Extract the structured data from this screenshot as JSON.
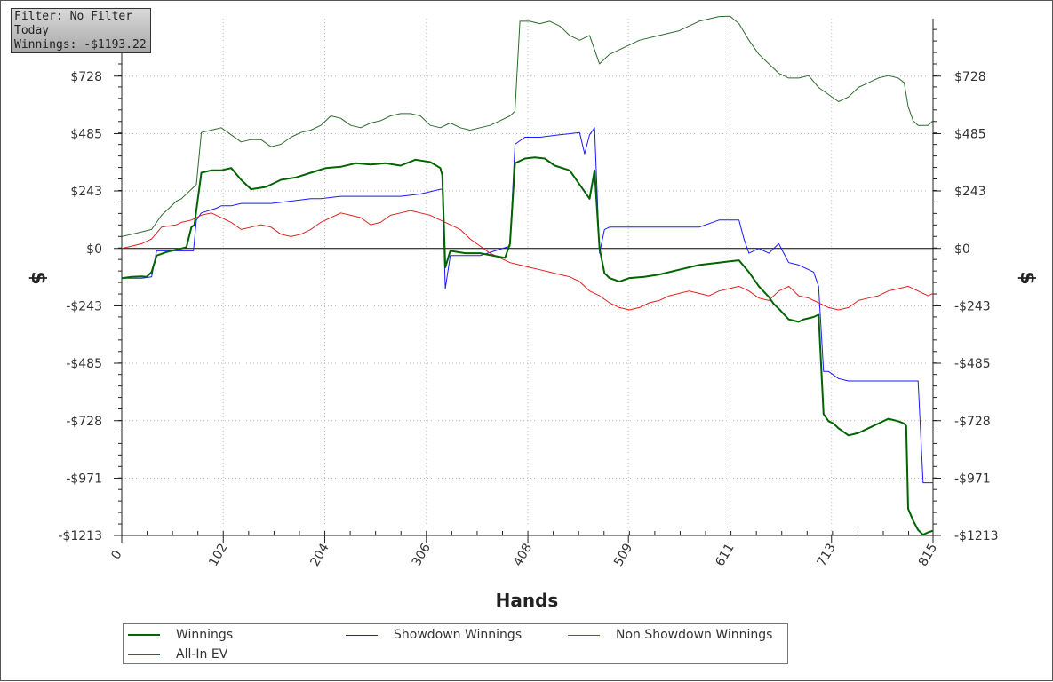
{
  "filter_box": {
    "line1": "Filter: No Filter",
    "line2": "Today",
    "line3": "Winnings: -$1193.22"
  },
  "chart_data": {
    "type": "line",
    "xlabel": "Hands",
    "ylabel": "$",
    "xlim": [
      0,
      815
    ],
    "ylim": [
      -1213,
      971
    ],
    "x_ticks": [
      0,
      102,
      204,
      306,
      408,
      509,
      611,
      713,
      815
    ],
    "y_ticks": [
      728,
      485,
      243,
      0,
      -243,
      -485,
      -728,
      -971,
      -1213
    ],
    "y_tick_labels": [
      "$728",
      "$485",
      "$243",
      "$0",
      "-$243",
      "-$485",
      "-$728",
      "-$971",
      "-$1213"
    ],
    "grid": true,
    "legend_position": "bottom",
    "series": [
      {
        "name": "Winnings",
        "color": "#006400",
        "width": 2,
        "x": [
          0,
          10,
          20,
          25,
          30,
          35,
          45,
          60,
          65,
          70,
          73,
          80,
          90,
          100,
          110,
          120,
          130,
          145,
          160,
          175,
          190,
          205,
          220,
          235,
          250,
          265,
          280,
          295,
          310,
          320,
          322,
          325,
          330,
          345,
          360,
          385,
          390,
          395,
          405,
          415,
          425,
          435,
          450,
          465,
          470,
          475,
          480,
          485,
          490,
          500,
          510,
          525,
          540,
          560,
          580,
          600,
          610,
          620,
          630,
          640,
          650,
          655,
          660,
          670,
          680,
          685,
          690,
          695,
          700,
          705,
          710,
          715,
          720,
          730,
          740,
          750,
          760,
          770,
          780,
          786,
          788,
          790,
          795,
          800,
          805,
          810,
          815
        ],
        "y": [
          -126,
          -120,
          -118,
          -120,
          -100,
          -30,
          -15,
          0,
          5,
          90,
          100,
          320,
          330,
          330,
          340,
          290,
          250,
          260,
          290,
          300,
          320,
          340,
          345,
          360,
          355,
          360,
          350,
          375,
          365,
          340,
          310,
          -80,
          -10,
          -20,
          -20,
          -40,
          20,
          360,
          380,
          385,
          380,
          350,
          330,
          240,
          210,
          330,
          0,
          -105,
          -125,
          -140,
          -125,
          -120,
          -110,
          -90,
          -70,
          -60,
          -55,
          -50,
          -100,
          -160,
          -205,
          -235,
          -255,
          -300,
          -310,
          -300,
          -295,
          -290,
          -280,
          -700,
          -730,
          -740,
          -760,
          -790,
          -780,
          -760,
          -740,
          -720,
          -730,
          -740,
          -750,
          -1100,
          -1150,
          -1190,
          -1210,
          -1200,
          -1193
        ]
      },
      {
        "name": "Showdown Winnings",
        "color": "#1a1aff",
        "width": 1,
        "x": [
          0,
          20,
          30,
          35,
          45,
          55,
          72,
          75,
          80,
          95,
          100,
          110,
          120,
          130,
          150,
          170,
          190,
          200,
          220,
          240,
          260,
          280,
          300,
          320,
          322,
          325,
          330,
          345,
          360,
          375,
          390,
          395,
          405,
          420,
          440,
          460,
          465,
          470,
          475,
          480,
          485,
          490,
          510,
          540,
          560,
          580,
          600,
          611,
          615,
          620,
          625,
          630,
          640,
          650,
          655,
          660,
          665,
          670,
          680,
          685,
          690,
          695,
          700,
          705,
          710,
          720,
          730,
          740,
          760,
          780,
          790,
          795,
          800,
          805,
          810,
          815
        ],
        "y": [
          -126,
          -126,
          -120,
          -10,
          -10,
          -10,
          -10,
          120,
          150,
          170,
          180,
          180,
          190,
          190,
          190,
          200,
          210,
          210,
          220,
          220,
          220,
          220,
          230,
          250,
          250,
          -170,
          -30,
          -30,
          -30,
          -10,
          10,
          440,
          470,
          470,
          480,
          490,
          400,
          480,
          510,
          -20,
          80,
          90,
          90,
          90,
          90,
          90,
          120,
          120,
          120,
          120,
          40,
          -20,
          0,
          -20,
          0,
          20,
          -20,
          -60,
          -70,
          -80,
          -90,
          -100,
          -160,
          -520,
          -520,
          -550,
          -560,
          -560,
          -560,
          -560,
          -560,
          -560,
          -560,
          -990,
          -990,
          -990
        ]
      },
      {
        "name": "Non Showdown Winnings",
        "color": "#e02020",
        "width": 1,
        "x": [
          0,
          10,
          20,
          30,
          40,
          55,
          60,
          70,
          80,
          90,
          100,
          110,
          120,
          130,
          140,
          150,
          160,
          170,
          180,
          190,
          200,
          210,
          220,
          230,
          240,
          250,
          260,
          270,
          280,
          290,
          300,
          310,
          320,
          330,
          340,
          350,
          360,
          370,
          380,
          390,
          400,
          410,
          420,
          430,
          440,
          450,
          460,
          470,
          480,
          490,
          500,
          510,
          520,
          530,
          540,
          550,
          560,
          570,
          580,
          590,
          600,
          610,
          620,
          630,
          640,
          650,
          660,
          670,
          680,
          690,
          700,
          710,
          720,
          730,
          740,
          750,
          760,
          770,
          780,
          790,
          800,
          810,
          815
        ],
        "y": [
          0,
          10,
          20,
          40,
          90,
          100,
          110,
          120,
          140,
          150,
          130,
          110,
          80,
          90,
          100,
          90,
          60,
          50,
          60,
          80,
          110,
          130,
          150,
          140,
          130,
          100,
          110,
          140,
          150,
          160,
          150,
          140,
          120,
          100,
          80,
          40,
          10,
          -20,
          -40,
          -60,
          -70,
          -80,
          -90,
          -100,
          -110,
          -120,
          -140,
          -180,
          -200,
          -230,
          -250,
          -260,
          -250,
          -230,
          -220,
          -200,
          -190,
          -180,
          -190,
          -200,
          -180,
          -170,
          -160,
          -180,
          -210,
          -220,
          -180,
          -160,
          -200,
          -210,
          -230,
          -250,
          -260,
          -250,
          -220,
          -210,
          -200,
          -180,
          -170,
          -160,
          -180,
          -200,
          -190
        ]
      },
      {
        "name": "All-In EV",
        "color": "#2d6a2d",
        "width": 1,
        "x": [
          0,
          10,
          20,
          30,
          40,
          55,
          60,
          70,
          75,
          80,
          90,
          100,
          110,
          120,
          130,
          140,
          150,
          160,
          170,
          180,
          190,
          200,
          210,
          220,
          230,
          240,
          250,
          260,
          270,
          280,
          290,
          300,
          310,
          320,
          330,
          340,
          350,
          360,
          370,
          380,
          390,
          395,
          400,
          410,
          420,
          430,
          440,
          450,
          460,
          470,
          480,
          490,
          500,
          510,
          520,
          540,
          560,
          580,
          600,
          611,
          620,
          630,
          640,
          650,
          660,
          670,
          680,
          690,
          700,
          710,
          720,
          730,
          740,
          750,
          760,
          770,
          780,
          786,
          790,
          795,
          800,
          805,
          810,
          815
        ],
        "y": [
          50,
          60,
          70,
          80,
          140,
          200,
          210,
          250,
          270,
          490,
          500,
          510,
          480,
          450,
          460,
          460,
          430,
          440,
          470,
          490,
          500,
          520,
          560,
          550,
          520,
          510,
          530,
          540,
          560,
          570,
          570,
          560,
          520,
          510,
          530,
          510,
          500,
          510,
          520,
          540,
          560,
          580,
          960,
          960,
          950,
          960,
          940,
          900,
          880,
          900,
          780,
          820,
          840,
          860,
          880,
          900,
          920,
          960,
          980,
          990,
          950,
          880,
          820,
          780,
          740,
          720,
          720,
          730,
          680,
          650,
          620,
          640,
          680,
          700,
          720,
          730,
          720,
          700,
          600,
          540,
          520,
          520,
          520,
          540
        ]
      }
    ]
  },
  "legend": {
    "items": [
      {
        "label": "Winnings",
        "color": "#006400",
        "width": 2
      },
      {
        "label": "Showdown Winnings",
        "color": "#1a1aff",
        "width": 1
      },
      {
        "label": "Non Showdown Winnings",
        "color": "#e02020",
        "width": 1
      },
      {
        "label": "All-In EV",
        "color": "#2d6a2d",
        "width": 1
      }
    ]
  }
}
